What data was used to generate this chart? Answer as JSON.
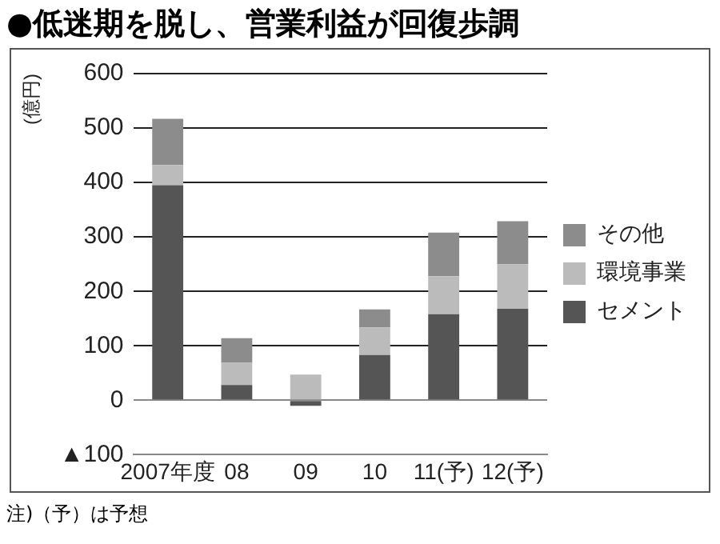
{
  "chart_data": {
    "type": "bar",
    "title": "●低迷期を脱し、営業利益が回復歩調",
    "ylabel": "(億円)",
    "annotations": [
      "注)（予）は予想"
    ],
    "categories": [
      "2007年度",
      "08",
      "09",
      "10",
      "11(予)",
      "12(予)"
    ],
    "stacked": true,
    "series": [
      {
        "name": "セメント",
        "color": "#555555",
        "values": [
          395,
          28,
          -10,
          83,
          158,
          168
        ]
      },
      {
        "name": "環境事業",
        "color": "#bbbbbb",
        "values": [
          37,
          41,
          47,
          51,
          70,
          82
        ]
      },
      {
        "name": "その他",
        "color": "#8c8c8c",
        "values": [
          85,
          45,
          null,
          33,
          80,
          79
        ]
      }
    ],
    "ylim": [
      -100,
      600
    ],
    "yticks": [
      {
        "value": -100,
        "label": "▲100"
      },
      0,
      100,
      200,
      300,
      400,
      500,
      600
    ],
    "grid": "y",
    "legend": "right"
  }
}
